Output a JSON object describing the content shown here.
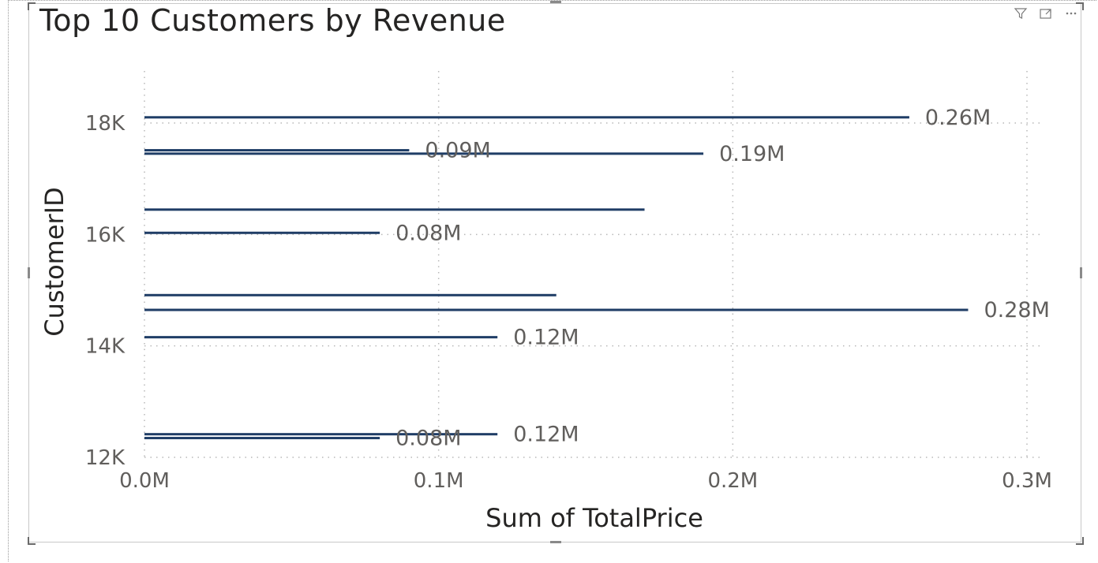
{
  "header": {
    "icons": [
      "filter-icon",
      "focus-mode-icon",
      "more-options-icon"
    ]
  },
  "chart_data": {
    "type": "bar",
    "orientation": "horizontal",
    "title": "Top 10 Customers by Revenue",
    "xlabel": "Sum of TotalPrice",
    "ylabel": "CustomerID",
    "xlim": [
      0,
      0.3
    ],
    "ylim": [
      12000,
      19000
    ],
    "x_ticks": [
      0,
      0.1,
      0.2,
      0.3
    ],
    "x_tick_labels": [
      "0.0M",
      "0.1M",
      "0.2M",
      "0.3M"
    ],
    "y_ticks": [
      12000,
      14000,
      16000,
      18000
    ],
    "y_tick_labels": [
      "12K",
      "14K",
      "16K",
      "18K"
    ],
    "grid": true,
    "bar_color": "#1f3d66",
    "points": [
      {
        "customer_id": 18102,
        "value": 0.26,
        "label": "0.26M"
      },
      {
        "customer_id": 17511,
        "value": 0.09,
        "label": "0.09M"
      },
      {
        "customer_id": 17450,
        "value": 0.19,
        "label": "0.19M"
      },
      {
        "customer_id": 16446,
        "value": 0.17,
        "label": ""
      },
      {
        "customer_id": 16029,
        "value": 0.08,
        "label": "0.08M"
      },
      {
        "customer_id": 14911,
        "value": 0.14,
        "label": ""
      },
      {
        "customer_id": 14646,
        "value": 0.28,
        "label": "0.28M"
      },
      {
        "customer_id": 14156,
        "value": 0.12,
        "label": "0.12M"
      },
      {
        "customer_id": 12415,
        "value": 0.12,
        "label": "0.12M"
      },
      {
        "customer_id": 12346,
        "value": 0.08,
        "label": "0.08M"
      }
    ]
  }
}
